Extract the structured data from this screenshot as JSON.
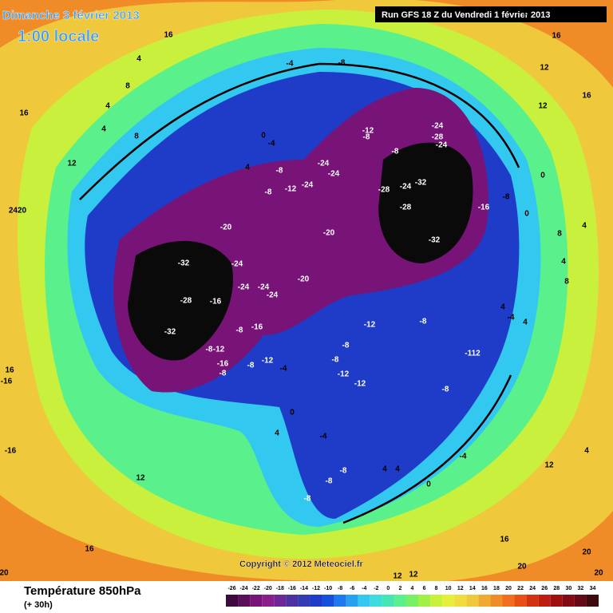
{
  "header": {
    "date": "Dimanche 3 février 2013",
    "time": "1:00 locale",
    "run": "Run GFS 18 Z du Vendredi 1 février 2013"
  },
  "copyright": "Copyright © 2012 Meteociel.fr",
  "footer": {
    "title": "Température 850hPa",
    "lead": "(+ 30h)"
  },
  "colorbar": {
    "ticks": [
      -26,
      -24,
      -22,
      -20,
      -18,
      -16,
      -14,
      -12,
      -10,
      -8,
      -6,
      -4,
      -2,
      0,
      2,
      4,
      6,
      8,
      10,
      12,
      14,
      16,
      18,
      20,
      22,
      24,
      26,
      28,
      30,
      32,
      34
    ],
    "colors": [
      "#3c0a3c",
      "#5a0f5a",
      "#781478",
      "#8c1e8c",
      "#6e2896",
      "#4b32a0",
      "#323cb4",
      "#1e3cc8",
      "#1450dc",
      "#1e78f0",
      "#28a0f0",
      "#32c8f0",
      "#3cdcdc",
      "#46e6b4",
      "#5af08c",
      "#78f064",
      "#a0f046",
      "#c8f03c",
      "#e6f03c",
      "#f0dc3c",
      "#f0c83c",
      "#f0aa32",
      "#f08c28",
      "#f06e1e",
      "#e65014",
      "#d2320f",
      "#be1e0f",
      "#a00f0f",
      "#820a14",
      "#640a14",
      "#3c0a0a"
    ]
  },
  "map": {
    "labels": [
      "-32",
      "-28",
      "-32",
      "-24",
      "-24",
      "-24",
      "-24",
      "-16",
      "-20",
      "-20",
      "-20",
      "-24",
      "-24",
      "-24",
      "-28",
      "-24",
      "-32",
      "-28",
      "-32",
      "-24",
      "-28",
      "-24",
      "-16",
      "-8",
      "-8",
      "-4",
      "-12",
      "-8",
      "-8",
      "-8",
      "-12",
      "-8",
      "-4",
      "0",
      "4",
      "-12",
      "-8",
      "-8",
      "-8",
      "-12",
      "-12",
      "-8",
      "-112",
      "-8",
      "-16",
      "-8",
      "-12",
      "-16",
      "-8",
      "-8",
      "-12",
      "-4",
      "0",
      "4",
      "-4",
      "-8",
      "-8",
      "-8",
      "-4",
      "0",
      "4",
      "4",
      "12",
      "16",
      "16",
      "20",
      "20",
      "20",
      "20",
      "12",
      "12",
      "16",
      "-16",
      "-16",
      "2420",
      "12",
      "4",
      "8",
      "4",
      "4",
      "8",
      "16",
      "16",
      "12",
      "16",
      "16",
      "12",
      "4",
      "8",
      "4",
      "8",
      "12",
      "4",
      "16",
      "0",
      "0",
      "4",
      "4",
      "-4"
    ]
  }
}
